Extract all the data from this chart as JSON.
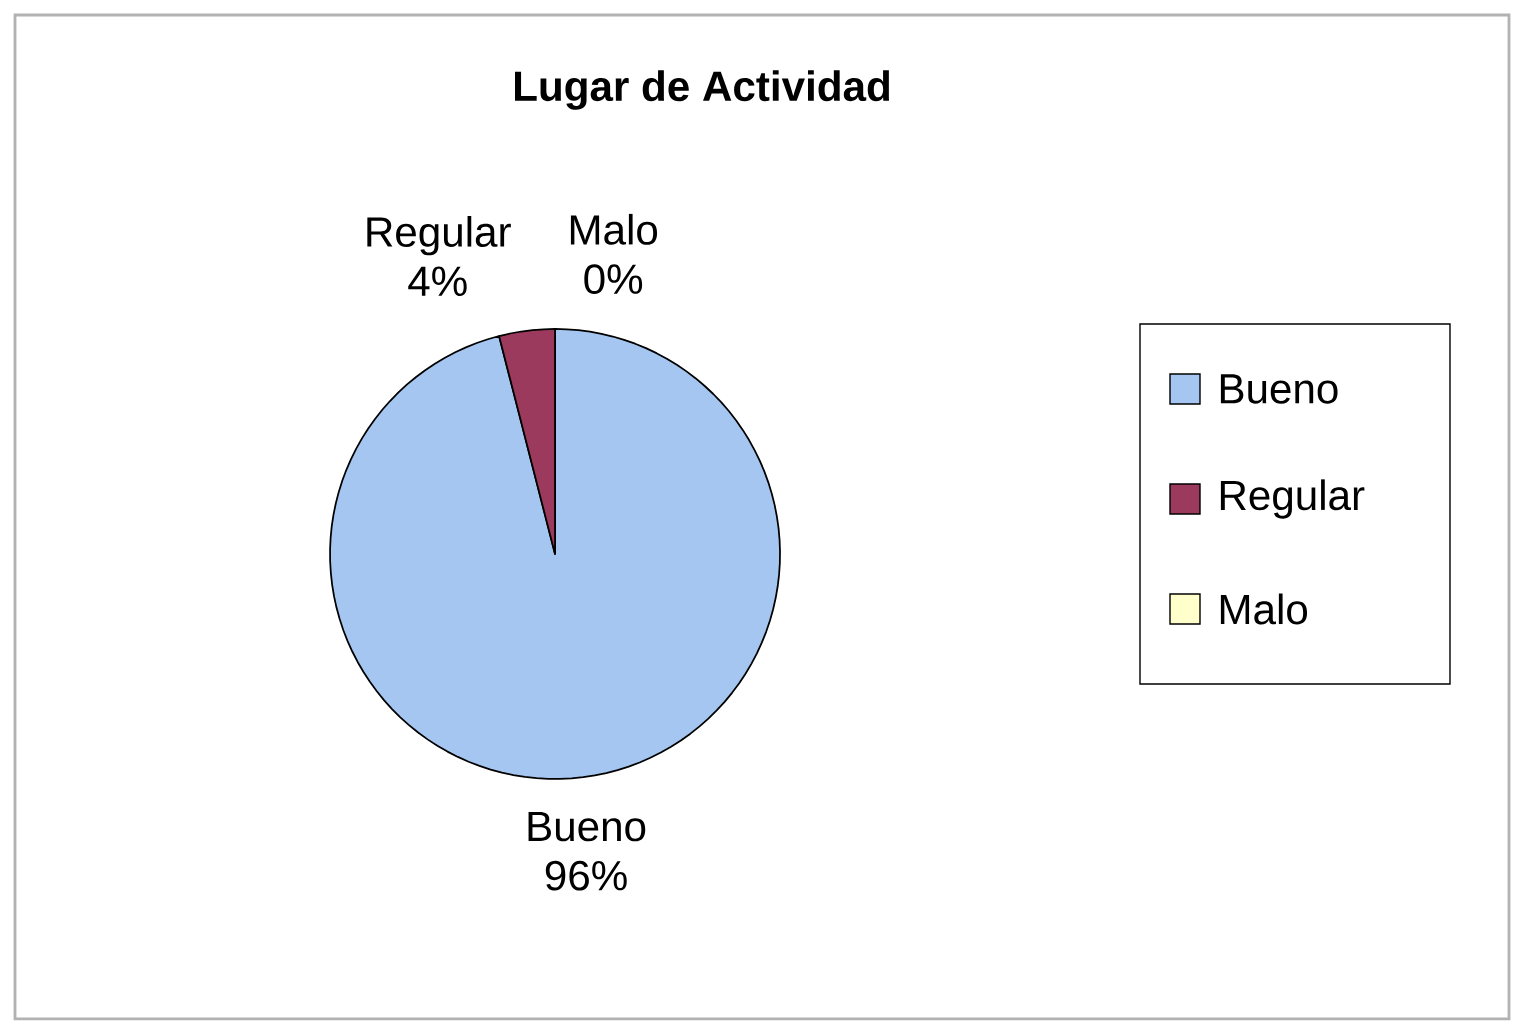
{
  "chart_data": {
    "type": "pie",
    "title": "Lugar de Actividad",
    "categories": [
      "Bueno",
      "Regular",
      "Malo"
    ],
    "values": [
      96,
      4,
      0
    ],
    "value_labels": [
      "96%",
      "4%",
      "0%"
    ],
    "colors": [
      "#a4c6f0",
      "#9b3a5c",
      "#ffffcc"
    ],
    "legend": "right"
  }
}
